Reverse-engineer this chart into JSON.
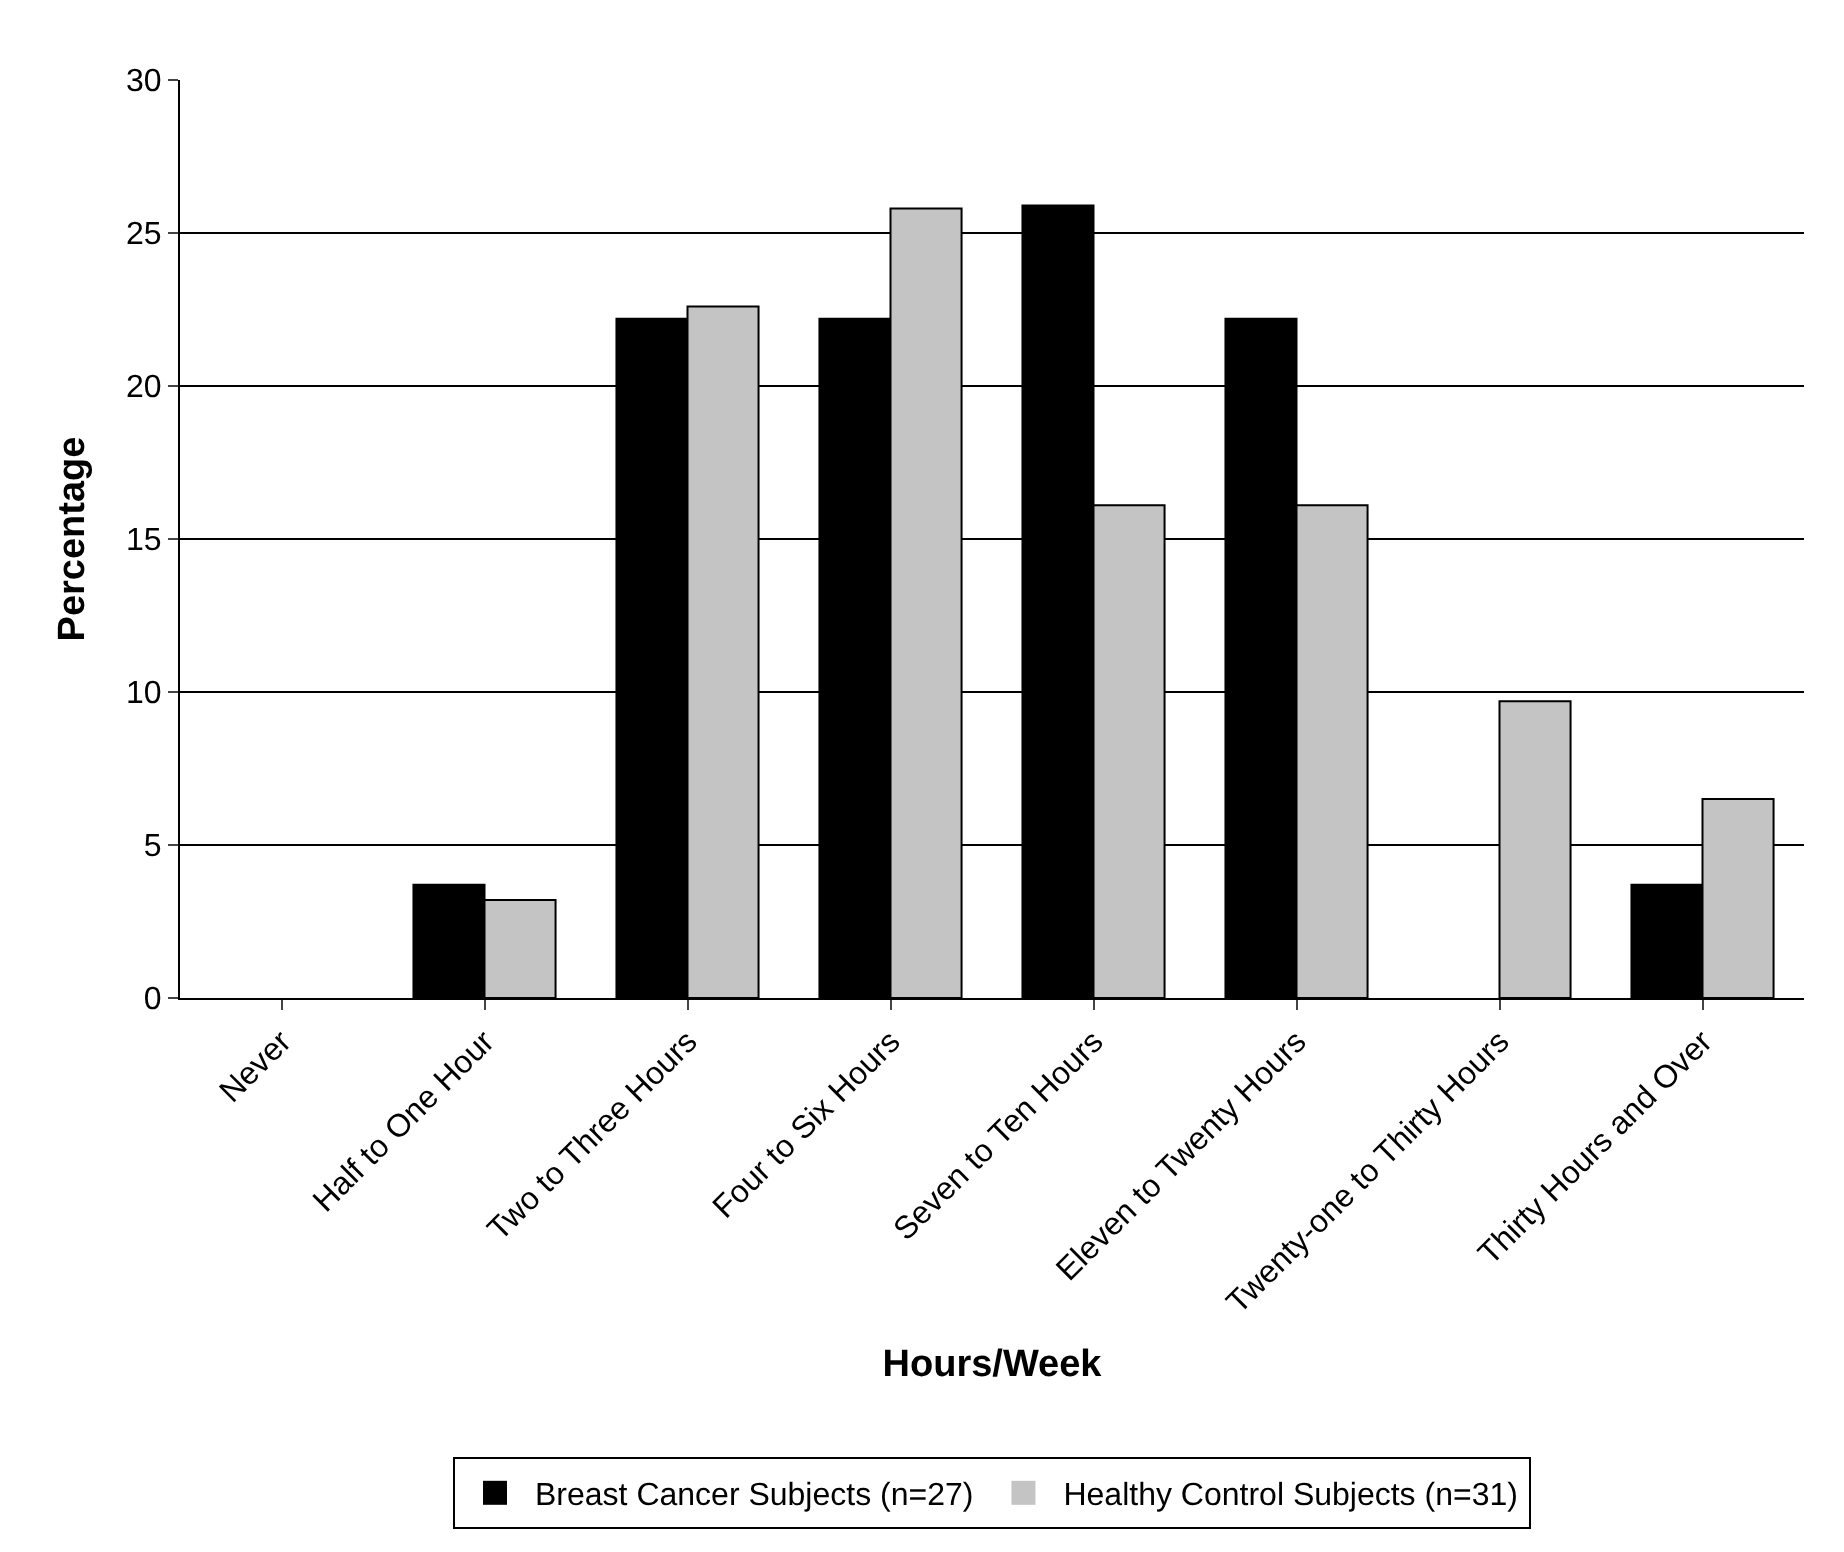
{
  "chart_data": {
    "type": "bar",
    "xlabel": "Hours/Week",
    "ylabel": "Percentage",
    "categories": [
      "Never",
      "Half to One Hour",
      "Two to Three Hours",
      "Four to Six Hours",
      "Seven to Ten Hours",
      "Eleven to Twenty Hours",
      "Twenty-one to Thirty Hours",
      "Thirty Hours and Over"
    ],
    "series": [
      {
        "name": "Breast Cancer Subjects (n=27)",
        "color": "#000000",
        "values": [
          0,
          3.7,
          22.2,
          22.2,
          25.9,
          22.2,
          0,
          3.7
        ]
      },
      {
        "name": "Healthy Control Subjects (n=31)",
        "color": "#c4c4c4",
        "values": [
          0,
          3.2,
          22.6,
          25.8,
          16.1,
          16.1,
          9.7,
          6.5
        ]
      }
    ],
    "ylim": [
      0,
      30
    ],
    "yticks": [
      0,
      5,
      10,
      15,
      20,
      25,
      30
    ],
    "grid": "y",
    "legend": "bottom"
  }
}
